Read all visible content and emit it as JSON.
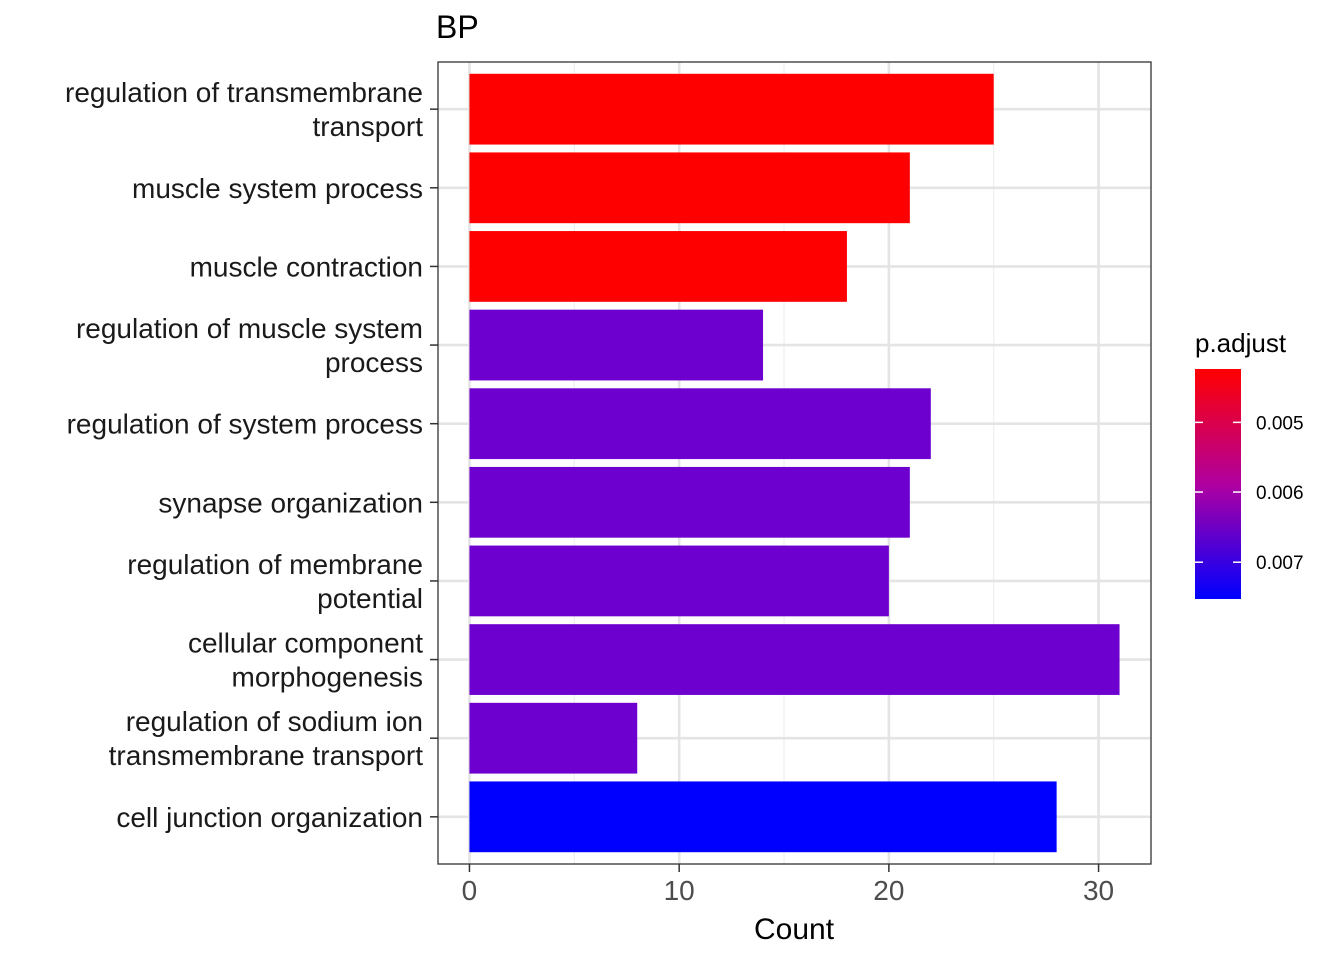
{
  "chart_data": {
    "type": "bar",
    "orientation": "horizontal",
    "title": "BP",
    "xlabel": "Count",
    "ylabel": "",
    "xlim": [
      -1.5,
      32.5
    ],
    "xticks": [
      0,
      10,
      20,
      30
    ],
    "grid": true,
    "categories": [
      [
        "regulation of transmembrane",
        "transport"
      ],
      [
        "muscle system process"
      ],
      [
        "muscle contraction"
      ],
      [
        "regulation of muscle system",
        "process"
      ],
      [
        "regulation of system process"
      ],
      [
        "synapse organization"
      ],
      [
        "regulation of membrane",
        "potential"
      ],
      [
        "cellular component",
        "morphogenesis"
      ],
      [
        "regulation of sodium ion",
        "transmembrane transport"
      ],
      [
        "cell junction organization"
      ]
    ],
    "values": [
      25,
      21,
      18,
      14,
      22,
      21,
      20,
      31,
      8,
      28
    ],
    "colors": [
      "#FF0000",
      "#FF0000",
      "#FF0000",
      "#6E00CF",
      "#6E00CF",
      "#6E00CF",
      "#6E00CF",
      "#6E00CF",
      "#6E00CF",
      "#0000FF"
    ],
    "legend": {
      "title": "p.adjust",
      "position": "right",
      "ticks": [
        "0.005",
        "0.006",
        "0.007"
      ],
      "gradient_top": "#FF0000",
      "gradient_bottom": "#0000FF"
    }
  }
}
